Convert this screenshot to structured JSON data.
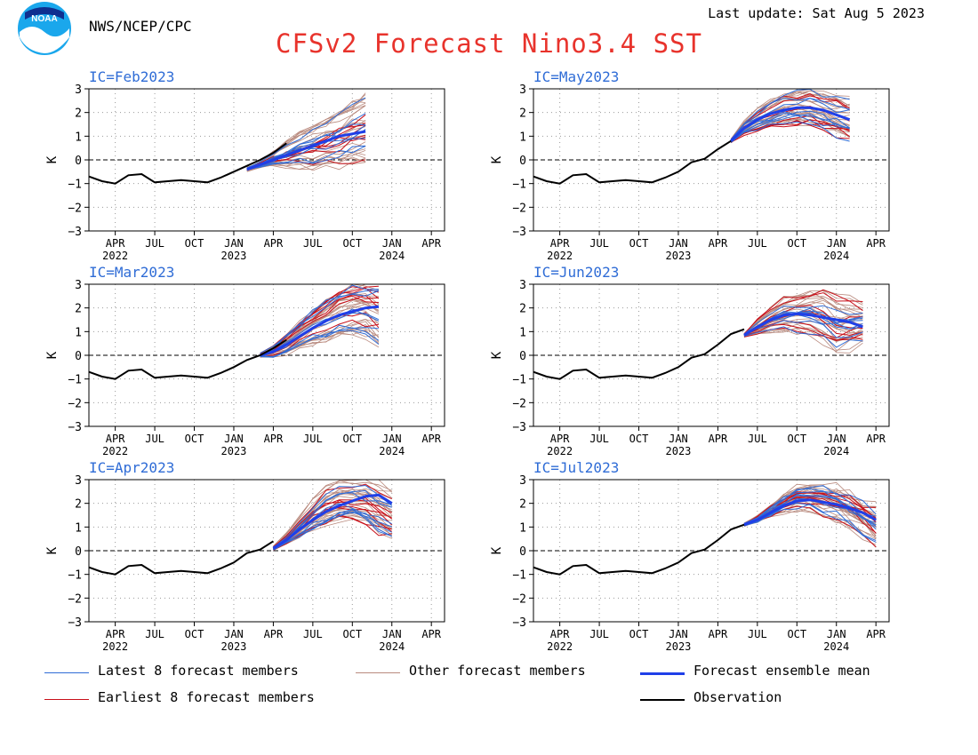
{
  "header": {
    "org": "NWS/NCEP/CPC",
    "last_update": "Last update: Sat Aug 5 2023",
    "title": "CFSv2 Forecast Nino3.4 SST",
    "logo_text": "NOAA"
  },
  "colors": {
    "title": "#e8332c",
    "panel_label": "#2f6cd6",
    "latest": "#2f6cd6",
    "earliest": "#c8101a",
    "other": "#b98a7e",
    "mean": "#1f3fe8",
    "observation": "#000000",
    "grid": "#9a9a9a"
  },
  "legend": [
    {
      "label": "Latest 8 forecast members",
      "color": "#2f6cd6",
      "style": "thin"
    },
    {
      "label": "Other forecast members",
      "color": "#b98a7e",
      "style": "thin"
    },
    {
      "label": "Forecast ensemble mean",
      "color": "#1f3fe8",
      "style": "thick"
    },
    {
      "label": "Earliest 8 forecast members",
      "color": "#c8101a",
      "style": "thin"
    },
    {
      "label": "Observation",
      "color": "#000000",
      "style": "thick"
    }
  ],
  "chart_data": [
    {
      "type": "line",
      "title": "IC=Feb2023",
      "ylabel": "K",
      "ylim": [
        -3,
        3
      ],
      "y_ticks": [
        -3,
        -2,
        -1,
        0,
        1,
        2,
        3
      ],
      "x_tick_labels": [
        "APR",
        "JUL",
        "OCT",
        "JAN",
        "APR",
        "JUL",
        "OCT",
        "JAN",
        "APR"
      ],
      "x_year_labels": [
        {
          "label": "2022",
          "month_index": 2
        },
        {
          "label": "2023",
          "month_index": 11
        },
        {
          "label": "2024",
          "month_index": 23
        }
      ],
      "observation": {
        "start_month_index": 0,
        "values": [
          -0.7,
          -0.9,
          -1.0,
          -0.65,
          -0.6,
          -0.95,
          -0.9,
          -0.85,
          -0.9,
          -0.95,
          -0.75,
          -0.5,
          -0.25,
          0.0,
          0.3,
          0.7
        ]
      },
      "forecast": {
        "start_month_index": 12,
        "mean": [
          -0.4,
          -0.2,
          0.0,
          0.2,
          0.4,
          0.6,
          0.8,
          1.0,
          1.1,
          1.2
        ],
        "spread_low": [
          -0.45,
          -0.3,
          -0.25,
          -0.3,
          -0.3,
          -0.4,
          -0.35,
          -0.3,
          -0.25,
          -0.25
        ],
        "spread_high": [
          -0.35,
          -0.1,
          0.3,
          0.7,
          1.1,
          1.4,
          1.7,
          2.0,
          2.4,
          2.8
        ]
      }
    },
    {
      "type": "line",
      "title": "IC=May2023",
      "ylabel": "K",
      "ylim": [
        -3,
        3
      ],
      "y_ticks": [
        -3,
        -2,
        -1,
        0,
        1,
        2,
        3
      ],
      "x_tick_labels": [
        "APR",
        "JUL",
        "OCT",
        "JAN",
        "APR",
        "JUL",
        "OCT",
        "JAN",
        "APR"
      ],
      "x_year_labels": [
        {
          "label": "2022",
          "month_index": 2
        },
        {
          "label": "2023",
          "month_index": 11
        },
        {
          "label": "2024",
          "month_index": 23
        }
      ],
      "observation": {
        "start_month_index": 0,
        "values": [
          -0.7,
          -0.9,
          -1.0,
          -0.65,
          -0.6,
          -0.95,
          -0.9,
          -0.85,
          -0.9,
          -0.95,
          -0.75,
          -0.5,
          -0.1,
          0.05,
          0.45,
          0.8
        ]
      },
      "forecast": {
        "start_month_index": 15,
        "mean": [
          0.8,
          1.35,
          1.7,
          1.95,
          2.1,
          2.2,
          2.2,
          2.1,
          1.9,
          1.7
        ],
        "spread_low": [
          0.75,
          1.1,
          1.25,
          1.4,
          1.5,
          1.5,
          1.5,
          1.4,
          1.1,
          1.0
        ],
        "spread_high": [
          0.85,
          1.6,
          2.1,
          2.5,
          2.8,
          2.9,
          2.9,
          2.7,
          2.6,
          2.4
        ]
      }
    },
    {
      "type": "line",
      "title": "IC=Mar2023",
      "ylabel": "K",
      "ylim": [
        -3,
        3
      ],
      "y_ticks": [
        -3,
        -2,
        -1,
        0,
        1,
        2,
        3
      ],
      "x_tick_labels": [
        "APR",
        "JUL",
        "OCT",
        "JAN",
        "APR",
        "JUL",
        "OCT",
        "JAN",
        "APR"
      ],
      "x_year_labels": [
        {
          "label": "2022",
          "month_index": 2
        },
        {
          "label": "2023",
          "month_index": 11
        },
        {
          "label": "2024",
          "month_index": 23
        }
      ],
      "observation": {
        "start_month_index": 0,
        "values": [
          -0.7,
          -0.9,
          -1.0,
          -0.65,
          -0.6,
          -0.95,
          -0.9,
          -0.85,
          -0.9,
          -0.95,
          -0.75,
          -0.5,
          -0.2,
          0.0,
          0.3,
          0.65
        ]
      },
      "forecast": {
        "start_month_index": 13,
        "mean": [
          0.0,
          0.15,
          0.45,
          0.8,
          1.15,
          1.45,
          1.7,
          1.85,
          2.0,
          2.05
        ],
        "spread_low": [
          -0.05,
          -0.05,
          0.05,
          0.3,
          0.5,
          0.65,
          0.8,
          0.9,
          0.9,
          0.6
        ],
        "spread_high": [
          0.05,
          0.35,
          0.9,
          1.4,
          1.9,
          2.4,
          2.8,
          3.0,
          3.0,
          2.8
        ]
      }
    },
    {
      "type": "line",
      "title": "IC=Jun2023",
      "ylabel": "K",
      "ylim": [
        -3,
        3
      ],
      "y_ticks": [
        -3,
        -2,
        -1,
        0,
        1,
        2,
        3
      ],
      "x_tick_labels": [
        "APR",
        "JUL",
        "OCT",
        "JAN",
        "APR",
        "JUL",
        "OCT",
        "JAN",
        "APR"
      ],
      "x_year_labels": [
        {
          "label": "2022",
          "month_index": 2
        },
        {
          "label": "2023",
          "month_index": 11
        },
        {
          "label": "2024",
          "month_index": 23
        }
      ],
      "observation": {
        "start_month_index": 0,
        "values": [
          -0.7,
          -0.9,
          -1.0,
          -0.65,
          -0.6,
          -0.95,
          -0.9,
          -0.85,
          -0.9,
          -0.95,
          -0.75,
          -0.5,
          -0.1,
          0.05,
          0.45,
          0.9,
          1.1
        ]
      },
      "forecast": {
        "start_month_index": 16,
        "mean": [
          0.85,
          1.2,
          1.5,
          1.7,
          1.75,
          1.7,
          1.6,
          1.5,
          1.4,
          1.2
        ],
        "spread_low": [
          0.8,
          0.9,
          1.0,
          1.05,
          1.0,
          0.9,
          0.6,
          0.2,
          0.4,
          0.6
        ],
        "spread_high": [
          0.9,
          1.5,
          2.0,
          2.4,
          2.6,
          2.8,
          2.8,
          2.5,
          2.3,
          2.2
        ]
      }
    },
    {
      "type": "line",
      "title": "IC=Apr2023",
      "ylabel": "K",
      "ylim": [
        -3,
        3
      ],
      "y_ticks": [
        -3,
        -2,
        -1,
        0,
        1,
        2,
        3
      ],
      "x_tick_labels": [
        "APR",
        "JUL",
        "OCT",
        "JAN",
        "APR",
        "JUL",
        "OCT",
        "JAN",
        "APR"
      ],
      "x_year_labels": [
        {
          "label": "2022",
          "month_index": 2
        },
        {
          "label": "2023",
          "month_index": 11
        },
        {
          "label": "2024",
          "month_index": 23
        }
      ],
      "observation": {
        "start_month_index": 0,
        "values": [
          -0.7,
          -0.9,
          -1.0,
          -0.65,
          -0.6,
          -0.95,
          -0.9,
          -0.85,
          -0.9,
          -0.95,
          -0.75,
          -0.5,
          -0.1,
          0.05,
          0.4
        ]
      },
      "forecast": {
        "start_month_index": 14,
        "mean": [
          0.1,
          0.45,
          0.9,
          1.3,
          1.65,
          1.9,
          2.1,
          2.3,
          2.35,
          2.0
        ],
        "spread_low": [
          0.05,
          0.3,
          0.6,
          0.9,
          1.1,
          1.3,
          1.4,
          1.2,
          0.8,
          0.5
        ],
        "spread_high": [
          0.15,
          0.7,
          1.4,
          2.1,
          2.7,
          3.0,
          3.0,
          3.0,
          2.9,
          2.6
        ]
      }
    },
    {
      "type": "line",
      "title": "IC=Jul2023",
      "ylabel": "K",
      "ylim": [
        -3,
        3
      ],
      "y_ticks": [
        -3,
        -2,
        -1,
        0,
        1,
        2,
        3
      ],
      "x_tick_labels": [
        "APR",
        "JUL",
        "OCT",
        "JAN",
        "APR",
        "JUL",
        "OCT",
        "JAN",
        "APR"
      ],
      "x_year_labels": [
        {
          "label": "2022",
          "month_index": 2
        },
        {
          "label": "2023",
          "month_index": 11
        },
        {
          "label": "2024",
          "month_index": 23
        }
      ],
      "observation": {
        "start_month_index": 0,
        "values": [
          -0.7,
          -0.9,
          -1.0,
          -0.65,
          -0.6,
          -0.95,
          -0.9,
          -0.85,
          -0.9,
          -0.95,
          -0.75,
          -0.5,
          -0.1,
          0.05,
          0.45,
          0.9,
          1.1
        ]
      },
      "forecast": {
        "start_month_index": 16,
        "mean": [
          1.1,
          1.3,
          1.6,
          1.9,
          2.1,
          2.15,
          2.05,
          1.95,
          1.8,
          1.6,
          1.3
        ],
        "spread_low": [
          1.05,
          1.2,
          1.4,
          1.6,
          1.7,
          1.7,
          1.5,
          1.3,
          1.0,
          0.6,
          0.2
        ],
        "spread_high": [
          1.15,
          1.45,
          1.9,
          2.4,
          2.8,
          2.9,
          2.8,
          2.7,
          2.5,
          2.2,
          2.0
        ]
      }
    }
  ]
}
